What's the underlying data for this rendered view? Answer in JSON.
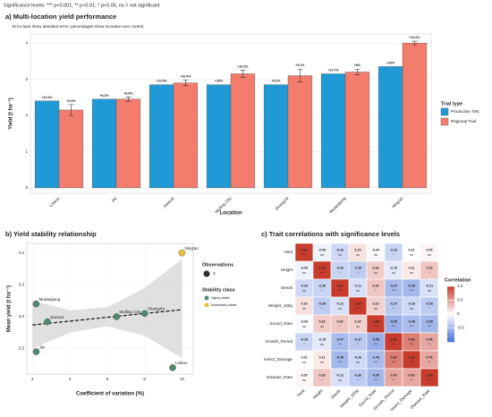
{
  "caption": "Significance levels: *** p<0.001, ** p<0.01, * p<0.05, ns = not significant",
  "chart_data": [
    {
      "type": "bar",
      "title": "a) Multi-location yield performance",
      "subtitle": "Error bars show standard error; percentages show increase over control",
      "x_label": "Location",
      "y_label": "Yield (t ha⁻¹)",
      "legend_title": "Trial type",
      "categories": [
        "Linkou",
        "Jixi",
        "Jiamusi",
        "Mulling City",
        "Shangzhi",
        "Mudanjiang",
        "Ning'an"
      ],
      "series": [
        {
          "name": "Production Test",
          "color": "#1f9ad6",
          "values": [
            2.4,
            2.45,
            2.85,
            2.85,
            2.85,
            3.15,
            3.35
          ],
          "increase_labels": [
            "+12.6%",
            "+8.2%",
            "+10.4%",
            "+15%",
            "+9.3%",
            "+10.7%",
            "+10%"
          ]
        },
        {
          "name": "Regional Trial",
          "color": "#f47c6c",
          "values": [
            2.15,
            2.45,
            2.9,
            3.15,
            3.1,
            3.2,
            4.0
          ],
          "errors": [
            0.15,
            0.06,
            0.08,
            0.1,
            0.18,
            0.08,
            0.05
          ],
          "increase_labels": [
            "+9.3%",
            "+8.8%",
            "+10.4%",
            "+10.9%",
            "+9.2%",
            "+8%",
            "+12.6%"
          ]
        }
      ],
      "ylim": [
        -0.15,
        4.25
      ],
      "yticks": [
        0,
        1,
        2,
        3,
        4
      ],
      "grid": true
    },
    {
      "type": "scatter",
      "title": "b) Yield stability relationship",
      "x_label": "Coefficient of variation (%)",
      "y_label": "Mean yield (t ha⁻¹)",
      "labels": [
        "Mudanjiang",
        "Jiamusi",
        "Jixi",
        "Mulling City",
        "Shangzhi",
        "Linkou",
        "Ning'an"
      ],
      "x": [
        2.2,
        2.8,
        2.2,
        6.5,
        8.0,
        9.5,
        10.0
      ],
      "y": [
        3.2,
        2.92,
        2.45,
        3.0,
        3.05,
        2.2,
        4.0
      ],
      "sizes": [
        3,
        3,
        3,
        3,
        3,
        3,
        3
      ],
      "class": [
        0,
        0,
        0,
        0,
        0,
        0,
        1
      ],
      "classes_title": "Stability class",
      "classes": [
        {
          "name": "Highly stable",
          "color": "#4d8a6e"
        },
        {
          "name": "Moderately stable",
          "color": "#e6c23a"
        }
      ],
      "size_legend_title": "Observations",
      "size_legend": [
        3
      ],
      "fit_x": [
        2,
        4,
        6,
        8,
        10
      ],
      "fit_y": [
        2.87,
        2.93,
        2.99,
        3.05,
        3.11
      ],
      "band_lower": [
        2.5,
        2.75,
        2.85,
        2.7,
        2.35
      ],
      "band_upper": [
        3.25,
        3.1,
        3.15,
        3.45,
        3.9
      ],
      "xlim": [
        1.7,
        10.6
      ],
      "xticks": [
        2,
        4,
        6,
        8,
        10
      ],
      "ylim": [
        2.1,
        4.15
      ],
      "yticks": [
        2.5,
        {
          "value": 3,
          "label": "3.0"
        },
        3.5,
        {
          "value": 4,
          "label": "4.0"
        }
      ]
    },
    {
      "type": "heatmap",
      "title": "c) Trait correlations with significance levels",
      "categories": [
        "Yield",
        "Height",
        "Seeds",
        "Weight_100g",
        "Sound_Rate",
        "Growth_Period",
        "Insect_Damage",
        "Disease_Rate"
      ],
      "values": [
        [
          1.0,
          -0.09,
          -0.26,
          0.15,
          -0.04,
          -0.29,
          0.01,
          0.05
        ],
        [
          -0.09,
          1.0,
          -0.3,
          -0.35,
          0.26,
          -0.15,
          0.11,
          0.29
        ],
        [
          -0.26,
          -0.3,
          1.0,
          -0.21,
          0.29,
          -0.47,
          -0.49,
          -0.21
        ],
        [
          0.15,
          -0.35,
          -0.21,
          1.0,
          0.23,
          -0.37,
          -0.26,
          -0.36
        ],
        [
          -0.04,
          0.26,
          0.29,
          0.23,
          1.0,
          -0.55,
          -0.46,
          -0.5
        ],
        [
          -0.29,
          -0.15,
          -0.47,
          -0.37,
          -0.55,
          1.0,
          0.66,
          0.45
        ],
        [
          0.01,
          0.11,
          -0.49,
          -0.26,
          -0.46,
          0.66,
          1.0,
          0.45
        ],
        [
          0.05,
          0.29,
          -0.21,
          -0.36,
          -0.5,
          0.45,
          0.45,
          1.0
        ]
      ],
      "value_labels": [
        [
          "1.00",
          "-0.09",
          "-0.26",
          "0.15",
          "-0.04",
          "-0.29",
          "0.01",
          "0.05"
        ],
        [
          "-0.09",
          "1.00",
          "-0.30",
          "-0.35",
          "0.26",
          "-0.15",
          "0.11",
          "0.29"
        ],
        [
          "-0.26",
          "-0.30",
          "1.00",
          "-0.21",
          "0.29",
          "-0.47",
          "-0.49",
          "-0.21"
        ],
        [
          "0.15",
          "-0.35",
          "-0.21",
          "1.00",
          "0.23",
          "-0.37",
          "-0.26",
          "-0.36"
        ],
        [
          "-0.04",
          "0.26",
          "0.29",
          "0.23",
          "1.00",
          "-0.55",
          "-0.46",
          "-0.50"
        ],
        [
          "-0.29",
          "-0.15",
          "-0.47",
          "-0.37",
          "-0.55",
          "1.00",
          "0.66",
          "0.45"
        ],
        [
          "0.01",
          "0.11",
          "-0.49",
          "-0.26",
          "-0.46",
          "0.66",
          "1.00",
          "0.45"
        ],
        [
          "0.05",
          "0.29",
          "-0.21",
          "-0.36",
          "-0.50",
          "0.45",
          "0.45",
          "1.00"
        ]
      ],
      "significance": [
        [
          "***",
          "ns",
          "ns",
          "ns",
          "ns",
          "*",
          "ns",
          "ns"
        ],
        [
          "ns",
          "***",
          "*",
          "*",
          "ns",
          "ns",
          "ns",
          "*"
        ],
        [
          "ns",
          "*",
          "***",
          "ns",
          "*",
          "***",
          "***",
          "ns"
        ],
        [
          "ns",
          "*",
          "ns",
          "***",
          "ns",
          "*",
          "ns",
          "*"
        ],
        [
          "ns",
          "ns",
          "*",
          "ns",
          "***",
          "***",
          "***",
          "***"
        ],
        [
          "*",
          "ns",
          "***",
          "*",
          "***",
          "***",
          "***",
          "**"
        ],
        [
          "ns",
          "ns",
          "***",
          "ns",
          "***",
          "***",
          "***",
          "**"
        ],
        [
          "ns",
          "*",
          "ns",
          "*",
          "***",
          "**",
          "**",
          "***"
        ]
      ],
      "legend_title": "Correlation",
      "clim": [
        -1,
        1
      ],
      "cticks": [
        {
          "value": 1,
          "label": "1.0"
        },
        0.5,
        0,
        -0.5
      ]
    }
  ]
}
